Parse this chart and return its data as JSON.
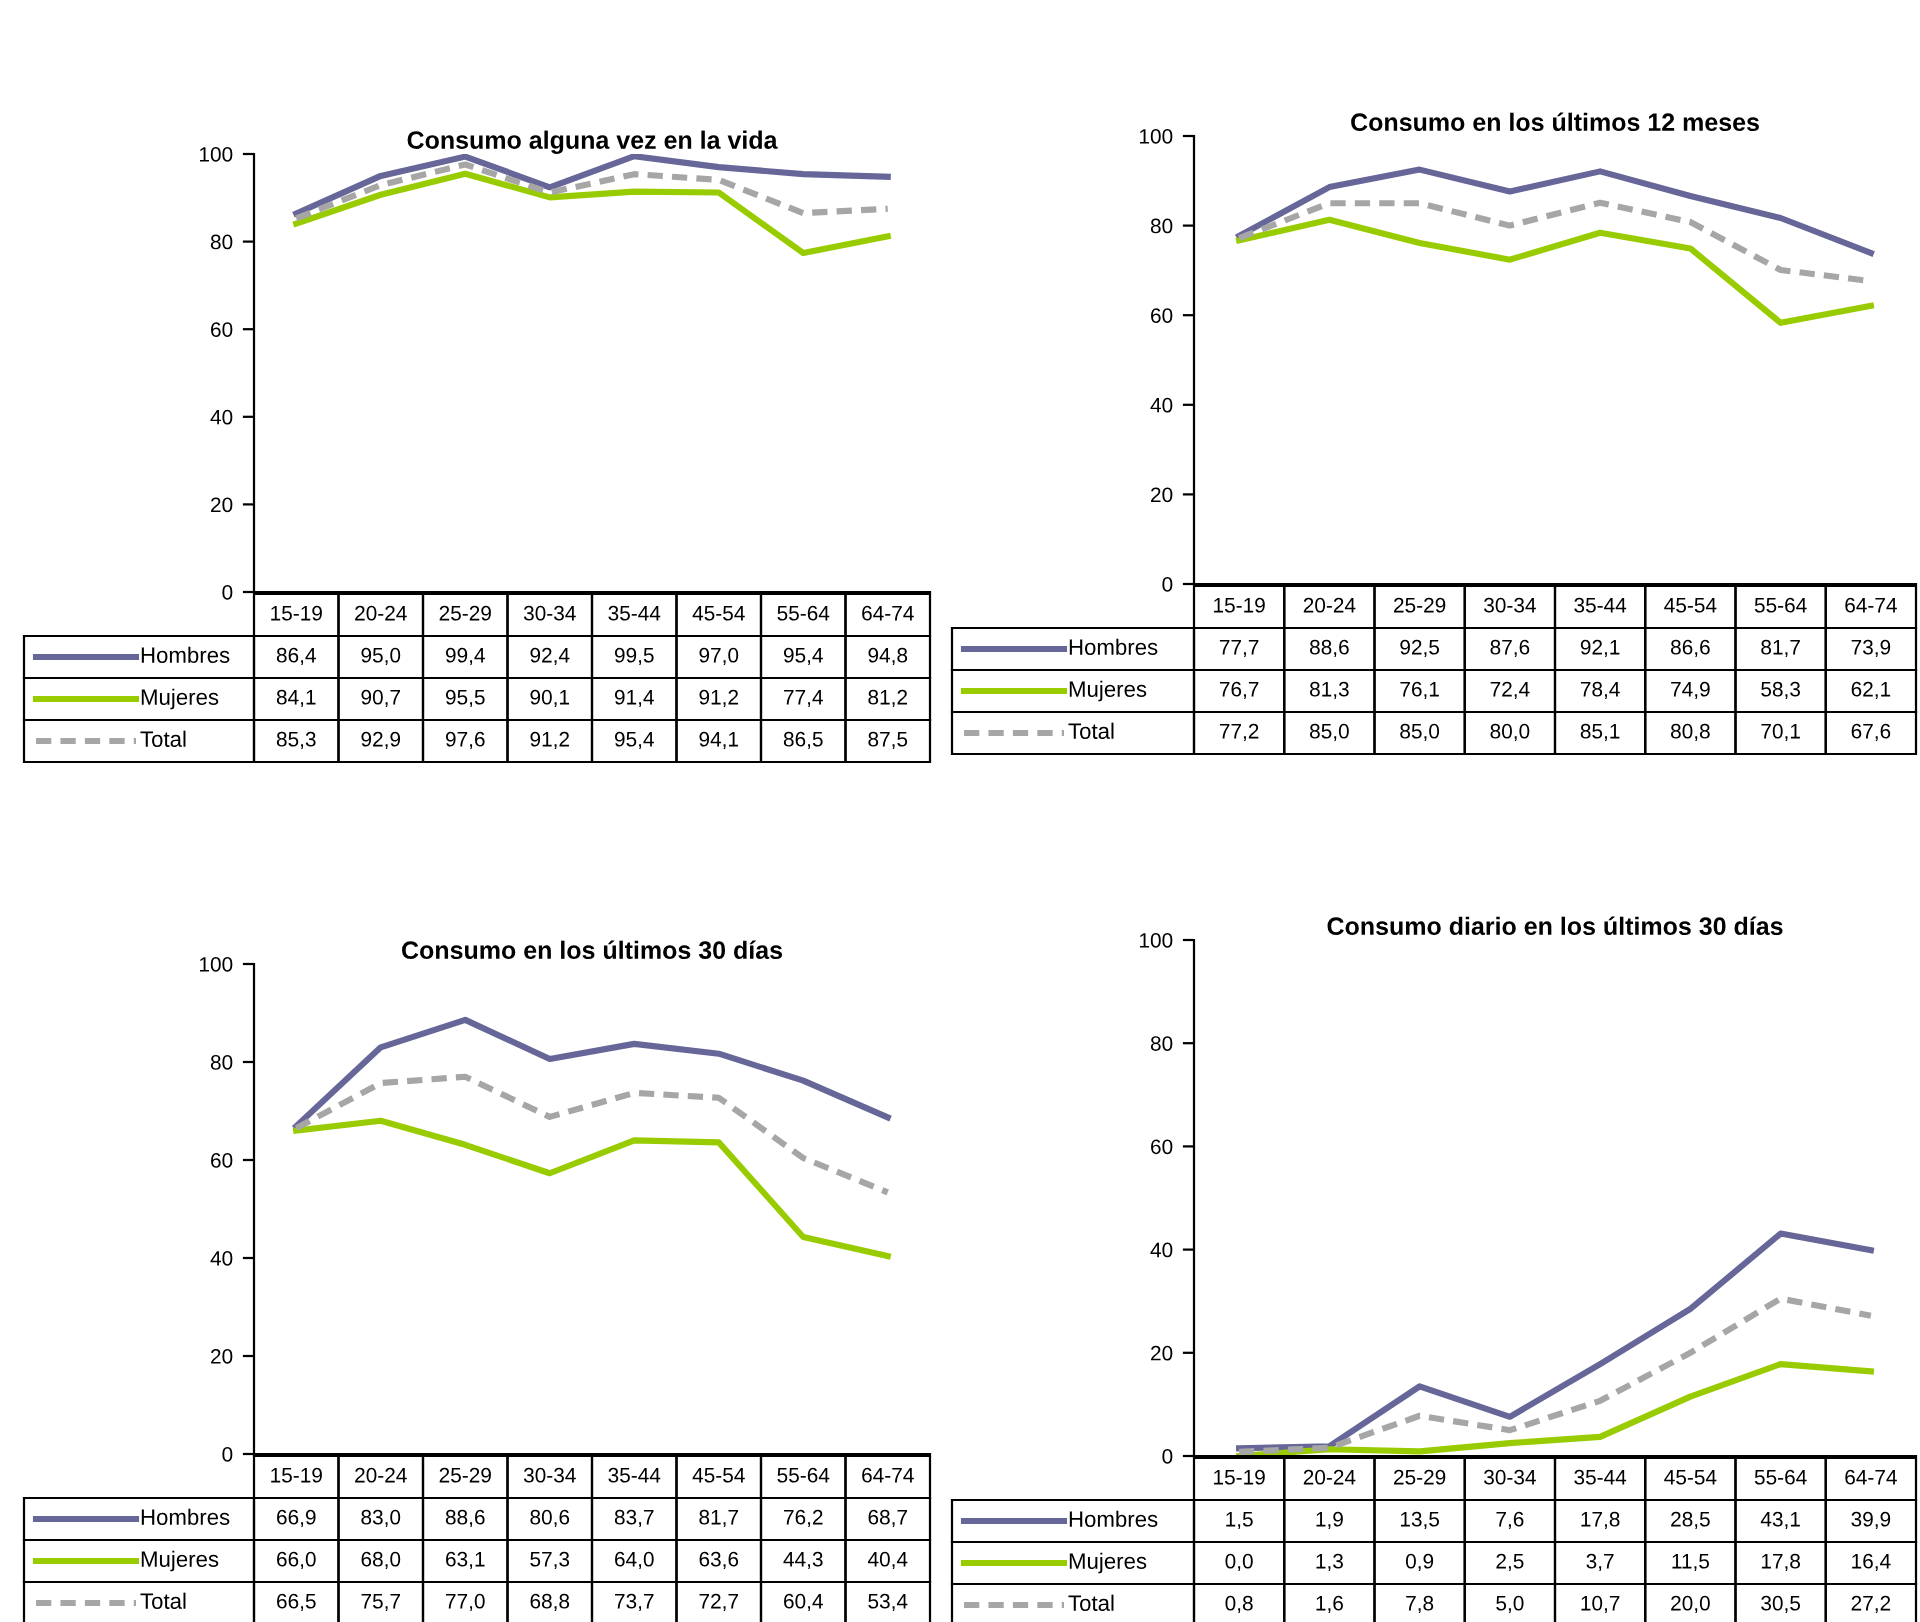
{
  "chart_data": [
    {
      "type": "line",
      "title": "Consumo alguna vez en la vida",
      "categories": [
        "15-19",
        "20-24",
        "25-29",
        "30-34",
        "35-44",
        "45-54",
        "55-64",
        "64-74"
      ],
      "ylim": [
        0,
        100
      ],
      "yticks": [
        0,
        20,
        40,
        60,
        80,
        100
      ],
      "grid": false,
      "legend": "bottom",
      "series": [
        {
          "name": "Hombres",
          "color": "#666699",
          "line_style": "solid",
          "values": [
            86.4,
            95.0,
            99.4,
            92.4,
            99.5,
            97.0,
            95.4,
            94.8
          ],
          "value_labels": [
            "86,4",
            "95,0",
            "99,4",
            "92,4",
            "99,5",
            "97,0",
            "95,4",
            "94,8"
          ]
        },
        {
          "name": "Mujeres",
          "color": "#99cc00",
          "line_style": "solid",
          "values": [
            84.1,
            90.7,
            95.5,
            90.1,
            91.4,
            91.2,
            77.4,
            81.2
          ],
          "value_labels": [
            "84,1",
            "90,7",
            "95,5",
            "90,1",
            "91,4",
            "91,2",
            "77,4",
            "81,2"
          ]
        },
        {
          "name": "Total",
          "color": "#a6a6a6",
          "line_style": "dashed",
          "values": [
            85.3,
            92.9,
            97.6,
            91.2,
            95.4,
            94.1,
            86.5,
            87.5
          ],
          "value_labels": [
            "85,3",
            "92,9",
            "97,6",
            "91,2",
            "95,4",
            "94,1",
            "86,5",
            "87,5"
          ]
        }
      ]
    },
    {
      "type": "line",
      "title": "Consumo en los últimos 12 meses",
      "categories": [
        "15-19",
        "20-24",
        "25-29",
        "30-34",
        "35-44",
        "45-54",
        "55-64",
        "64-74"
      ],
      "ylim": [
        0,
        100
      ],
      "yticks": [
        0,
        20,
        40,
        60,
        80,
        100
      ],
      "grid": false,
      "legend": "bottom",
      "series": [
        {
          "name": "Hombres",
          "color": "#666699",
          "line_style": "solid",
          "values": [
            77.7,
            88.6,
            92.5,
            87.6,
            92.1,
            86.6,
            81.7,
            73.9
          ],
          "value_labels": [
            "77,7",
            "88,6",
            "92,5",
            "87,6",
            "92,1",
            "86,6",
            "81,7",
            "73,9"
          ]
        },
        {
          "name": "Mujeres",
          "color": "#99cc00",
          "line_style": "solid",
          "values": [
            76.7,
            81.3,
            76.1,
            72.4,
            78.4,
            74.9,
            58.3,
            62.1
          ],
          "value_labels": [
            "76,7",
            "81,3",
            "76,1",
            "72,4",
            "78,4",
            "74,9",
            "58,3",
            "62,1"
          ]
        },
        {
          "name": "Total",
          "color": "#a6a6a6",
          "line_style": "dashed",
          "values": [
            77.2,
            85.0,
            85.0,
            80.0,
            85.1,
            80.8,
            70.1,
            67.6
          ],
          "value_labels": [
            "77,2",
            "85,0",
            "85,0",
            "80,0",
            "85,1",
            "80,8",
            "70,1",
            "67,6"
          ]
        }
      ]
    },
    {
      "type": "line",
      "title": "Consumo en los últimos 30 días",
      "categories": [
        "15-19",
        "20-24",
        "25-29",
        "30-34",
        "35-44",
        "45-54",
        "55-64",
        "64-74"
      ],
      "ylim": [
        0,
        100
      ],
      "yticks": [
        0,
        20,
        40,
        60,
        80,
        100
      ],
      "grid": false,
      "legend": "bottom",
      "series": [
        {
          "name": "Hombres",
          "color": "#666699",
          "line_style": "solid",
          "values": [
            66.9,
            83.0,
            88.6,
            80.6,
            83.7,
            81.7,
            76.2,
            68.7
          ],
          "value_labels": [
            "66,9",
            "83,0",
            "88,6",
            "80,6",
            "83,7",
            "81,7",
            "76,2",
            "68,7"
          ]
        },
        {
          "name": "Mujeres",
          "color": "#99cc00",
          "line_style": "solid",
          "values": [
            66.0,
            68.0,
            63.1,
            57.3,
            64.0,
            63.6,
            44.3,
            40.4
          ],
          "value_labels": [
            "66,0",
            "68,0",
            "63,1",
            "57,3",
            "64,0",
            "63,6",
            "44,3",
            "40,4"
          ]
        },
        {
          "name": "Total",
          "color": "#a6a6a6",
          "line_style": "dashed",
          "values": [
            66.5,
            75.7,
            77.0,
            68.8,
            73.7,
            72.7,
            60.4,
            53.4
          ],
          "value_labels": [
            "66,5",
            "75,7",
            "77,0",
            "68,8",
            "73,7",
            "72,7",
            "60,4",
            "53,4"
          ]
        }
      ]
    },
    {
      "type": "line",
      "title": "Consumo diario en los últimos 30 días",
      "categories": [
        "15-19",
        "20-24",
        "25-29",
        "30-34",
        "35-44",
        "45-54",
        "55-64",
        "64-74"
      ],
      "ylim": [
        0,
        100
      ],
      "yticks": [
        0,
        20,
        40,
        60,
        80,
        100
      ],
      "grid": false,
      "legend": "bottom",
      "series": [
        {
          "name": "Hombres",
          "color": "#666699",
          "line_style": "solid",
          "values": [
            1.5,
            1.9,
            13.5,
            7.6,
            17.8,
            28.5,
            43.1,
            39.9
          ],
          "value_labels": [
            "1,5",
            "1,9",
            "13,5",
            "7,6",
            "17,8",
            "28,5",
            "43,1",
            "39,9"
          ]
        },
        {
          "name": "Mujeres",
          "color": "#99cc00",
          "line_style": "solid",
          "values": [
            0.0,
            1.3,
            0.9,
            2.5,
            3.7,
            11.5,
            17.8,
            16.4
          ],
          "value_labels": [
            "0,0",
            "1,3",
            "0,9",
            "2,5",
            "3,7",
            "11,5",
            "17,8",
            "16,4"
          ]
        },
        {
          "name": "Total",
          "color": "#a6a6a6",
          "line_style": "dashed",
          "values": [
            0.8,
            1.6,
            7.8,
            5.0,
            10.7,
            20.0,
            30.5,
            27.2
          ],
          "value_labels": [
            "0,8",
            "1,6",
            "7,8",
            "5,0",
            "10,7",
            "20,0",
            "30,5",
            "27,2"
          ]
        }
      ]
    }
  ]
}
